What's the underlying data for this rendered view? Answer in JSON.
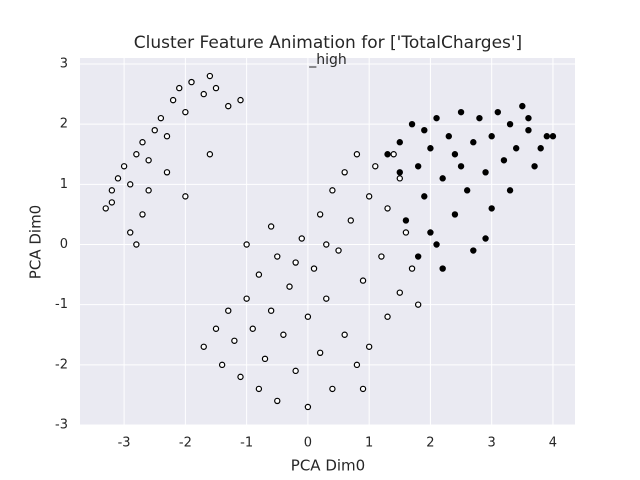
{
  "chart_data": {
    "type": "scatter",
    "title": "Cluster Feature Animation for ['TotalCharges']",
    "subtitle": "_high",
    "x_label": "PCA Dim0",
    "y_label": "PCA Dim0",
    "xlim": [
      -3.72,
      4.36
    ],
    "ylim": [
      -3.0,
      3.1
    ],
    "xticks": [
      -3,
      -2,
      -1,
      0,
      1,
      2,
      3,
      4
    ],
    "yticks": [
      -3,
      -2,
      -1,
      0,
      1,
      2,
      3
    ],
    "grid": true,
    "background": "#eaeaf2",
    "series": [
      {
        "color": "#ffffff",
        "edgecolor": "#000000",
        "x": [
          -3.3,
          -3.2,
          -3.1,
          -3.0,
          -2.9,
          -2.8,
          -2.7,
          -2.6,
          -2.5,
          -2.4,
          -2.3,
          -2.2,
          -2.1,
          -2.0,
          -1.9,
          -1.7,
          -1.6,
          -1.5,
          -2.9,
          -2.8,
          -2.6,
          -2.0,
          -1.6,
          -1.3,
          -1.1,
          -3.2,
          -2.7,
          -2.3,
          -1.7,
          -1.5,
          -1.4,
          -1.3,
          -1.2,
          -1.1,
          -1.0,
          -0.9,
          -0.8,
          -0.8,
          -0.7,
          -0.6,
          -0.5,
          -0.5,
          -0.4,
          -0.3,
          -0.2,
          -0.1,
          0.0,
          0.0,
          0.1,
          0.2,
          0.2,
          0.3,
          0.4,
          0.4,
          0.5,
          0.6,
          0.6,
          0.7,
          0.8,
          0.8,
          0.9,
          1.0,
          1.0,
          1.1,
          1.2,
          1.3,
          1.3,
          1.4,
          1.5,
          1.6,
          1.7,
          1.8,
          -1.0,
          -0.6,
          0.9,
          1.5,
          -0.2,
          0.3
        ],
        "y": [
          0.6,
          0.9,
          1.1,
          1.3,
          1.0,
          1.5,
          1.7,
          1.4,
          1.9,
          2.1,
          1.8,
          2.4,
          2.6,
          2.2,
          2.7,
          2.5,
          2.8,
          2.6,
          0.2,
          0.0,
          0.9,
          0.8,
          1.5,
          2.3,
          2.4,
          0.7,
          0.5,
          1.2,
          -1.7,
          -1.4,
          -2.0,
          -1.1,
          -1.6,
          -2.2,
          -0.9,
          -1.4,
          -2.4,
          -0.5,
          -1.9,
          -1.1,
          -0.2,
          -2.6,
          -1.5,
          -0.7,
          -2.1,
          0.1,
          -1.2,
          -2.7,
          -0.4,
          -1.8,
          0.5,
          -0.9,
          -2.4,
          0.9,
          -0.1,
          -1.5,
          1.2,
          0.4,
          -2.0,
          1.5,
          -0.6,
          0.8,
          -1.7,
          1.3,
          -0.2,
          -1.2,
          0.6,
          1.5,
          -0.8,
          0.2,
          -0.4,
          -1.0,
          0.0,
          0.3,
          -2.4,
          1.1,
          -0.3,
          0.0
        ]
      },
      {
        "color": "#000000",
        "edgecolor": "#000000",
        "x": [
          1.3,
          1.5,
          1.7,
          1.8,
          1.9,
          2.0,
          2.0,
          2.1,
          2.2,
          2.2,
          2.3,
          2.4,
          2.5,
          2.5,
          2.6,
          2.7,
          2.7,
          2.8,
          2.9,
          3.0,
          3.0,
          3.1,
          3.2,
          3.3,
          3.3,
          3.4,
          3.5,
          3.6,
          3.7,
          3.8,
          3.9,
          4.0,
          1.6,
          1.8,
          2.4,
          2.9,
          1.5,
          2.1,
          3.6,
          1.9
        ],
        "y": [
          1.5,
          1.7,
          2.0,
          1.3,
          0.8,
          1.6,
          0.2,
          2.1,
          1.1,
          -0.4,
          1.8,
          0.5,
          2.2,
          1.3,
          0.9,
          1.7,
          -0.1,
          2.1,
          1.2,
          0.6,
          1.8,
          2.2,
          1.4,
          0.9,
          2.0,
          1.6,
          2.3,
          1.9,
          1.3,
          1.6,
          1.8,
          1.8,
          0.4,
          -0.2,
          1.5,
          0.1,
          1.2,
          0.0,
          2.1,
          1.9
        ]
      }
    ]
  }
}
